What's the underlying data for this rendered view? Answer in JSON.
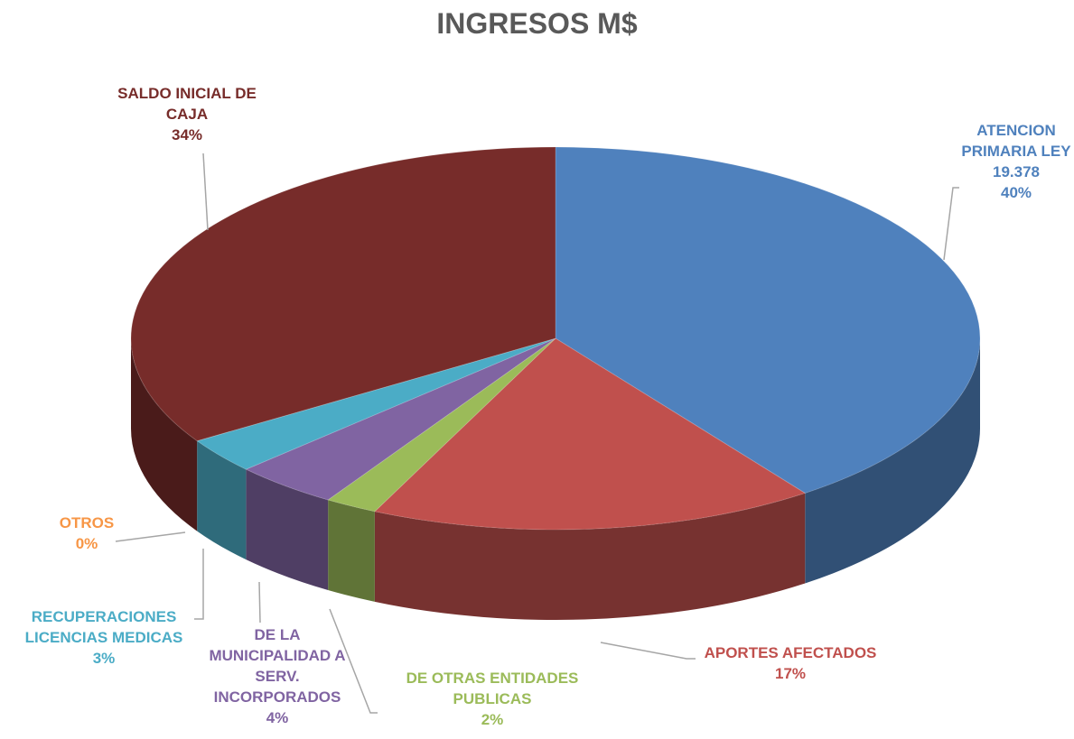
{
  "chart_data": {
    "type": "pie",
    "title": "INGRESOS M$",
    "categories": [
      "ATENCION PRIMARIA LEY 19.378",
      "APORTES AFECTADOS",
      "DE OTRAS ENTIDADES PUBLICAS",
      "DE LA MUNICIPALIDAD A SERV. INCORPORADOS",
      "RECUPERACIONES LICENCIAS MEDICAS",
      "OTROS",
      "SALDO INICIAL DE CAJA"
    ],
    "values": [
      40,
      17,
      2,
      4,
      3,
      0,
      34
    ],
    "value_labels": [
      "40%",
      "17%",
      "2%",
      "4%",
      "3%",
      "0%",
      "34%"
    ],
    "colors": [
      "#4f81bd",
      "#c0504d",
      "#9bbb59",
      "#8064a2",
      "#4bacc6",
      "#f79646",
      "#772c2a"
    ]
  }
}
